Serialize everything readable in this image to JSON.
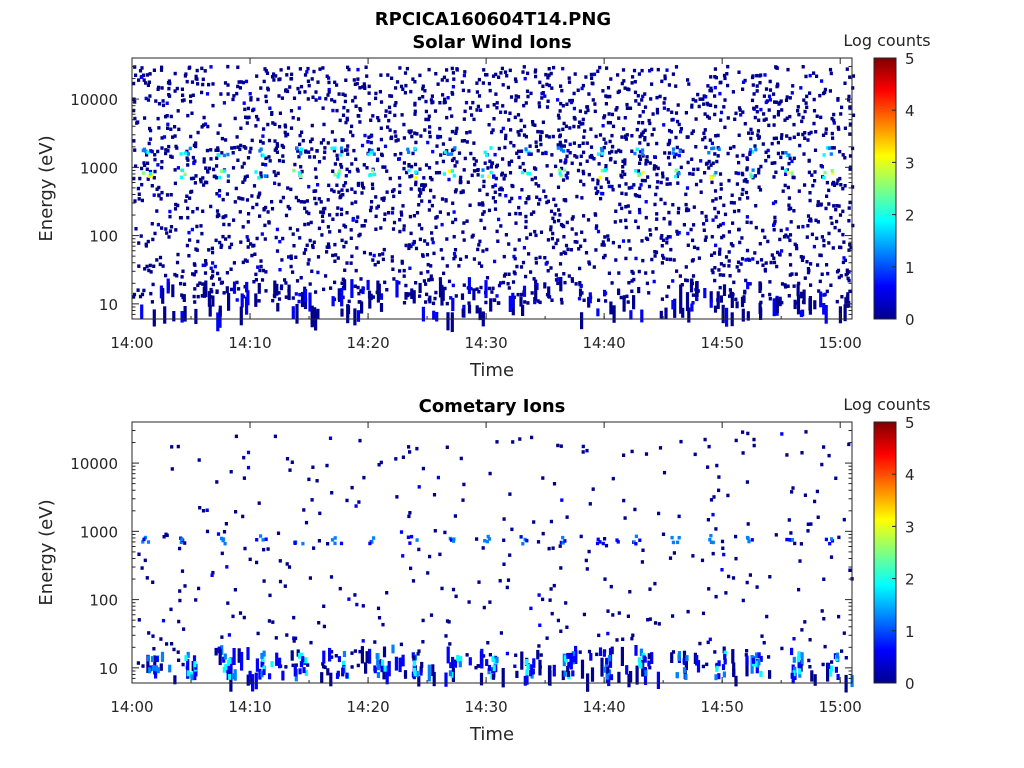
{
  "figure": {
    "title": "RPCICA160604T14.PNG"
  },
  "colormap": [
    "#00008f",
    "#0000ff",
    "#0080ff",
    "#00ffff",
    "#80ff80",
    "#ffff00",
    "#ff8000",
    "#ff0000",
    "#800000"
  ],
  "chart_data": [
    {
      "type": "heatmap",
      "title": "Solar Wind Ions",
      "xlabel": "Time",
      "ylabel": "Energy (eV)",
      "yscale": "log",
      "xlim": [
        "14:00",
        "15:01"
      ],
      "ylim": [
        6,
        40000
      ],
      "x_ticks": [
        "14:00",
        "14:10",
        "14:20",
        "14:30",
        "14:40",
        "14:50",
        "15:00"
      ],
      "y_ticks": [
        "10",
        "100",
        "1000",
        "10000"
      ],
      "colorbar": {
        "label": "Log counts",
        "min": 0,
        "max": 5,
        "ticks": [
          "0",
          "1",
          "2",
          "3",
          "4",
          "5"
        ]
      },
      "dominant_features": [
        {
          "energy_eV": 850,
          "period_min": 3.2,
          "start_min": 1.0,
          "log_counts": [
            1.5,
            3.0
          ]
        },
        {
          "energy_eV": 1800,
          "period_min": 3.2,
          "start_min": 1.0,
          "log_counts": [
            1.0,
            2.0
          ]
        }
      ],
      "background_log_counts": [
        0,
        1
      ],
      "background_density": "high"
    },
    {
      "type": "heatmap",
      "title": "Cometary Ions",
      "xlabel": "Time",
      "ylabel": "Energy (eV)",
      "yscale": "log",
      "xlim": [
        "14:00",
        "15:01"
      ],
      "ylim": [
        6,
        40000
      ],
      "x_ticks": [
        "14:00",
        "14:10",
        "14:20",
        "14:30",
        "14:40",
        "14:50",
        "15:00"
      ],
      "y_ticks": [
        "10",
        "100",
        "1000",
        "10000"
      ],
      "colorbar": {
        "label": "Log counts",
        "min": 0,
        "max": 5,
        "ticks": [
          "0",
          "1",
          "2",
          "3",
          "4",
          "5"
        ]
      },
      "dominant_features": [
        {
          "energy_eV": 800,
          "period_min": 3.2,
          "start_min": 1.0,
          "log_counts": [
            0.8,
            1.5
          ]
        },
        {
          "energy_eV": 12,
          "period_min": 3.2,
          "start_min": 1.5,
          "log_counts": [
            0.5,
            2.2
          ]
        }
      ],
      "background_log_counts": [
        0,
        1
      ],
      "background_density": "low"
    }
  ]
}
